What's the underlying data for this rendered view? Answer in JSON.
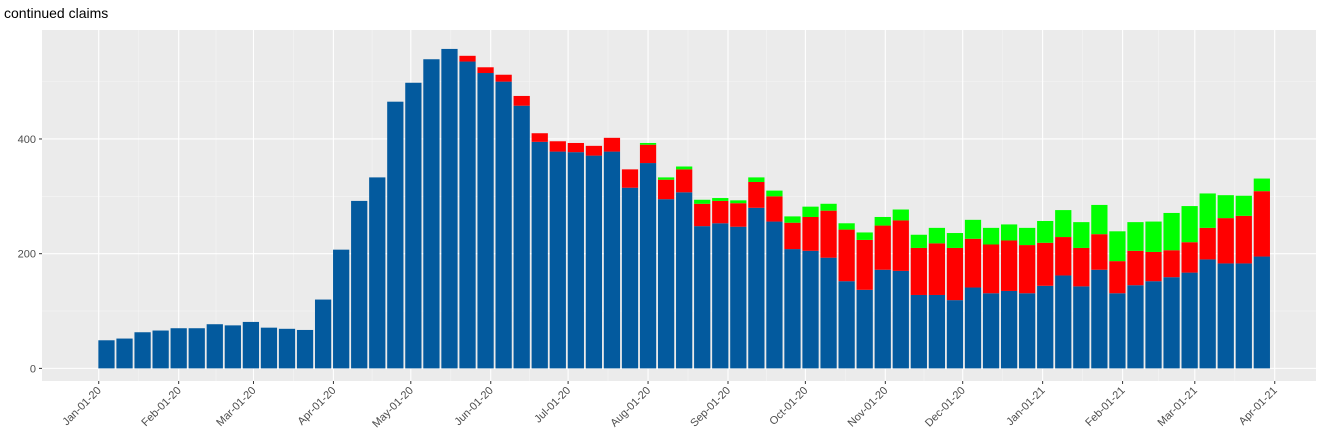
{
  "chart_data": {
    "type": "stacked_bar",
    "title": "continued claims",
    "x": [
      "2020-01-04",
      "2020-01-11",
      "2020-01-18",
      "2020-01-25",
      "2020-02-01",
      "2020-02-08",
      "2020-02-15",
      "2020-02-22",
      "2020-02-29",
      "2020-03-07",
      "2020-03-14",
      "2020-03-21",
      "2020-03-28",
      "2020-04-04",
      "2020-04-11",
      "2020-04-18",
      "2020-04-25",
      "2020-05-02",
      "2020-05-09",
      "2020-05-16",
      "2020-05-23",
      "2020-05-30",
      "2020-06-06",
      "2020-06-13",
      "2020-06-20",
      "2020-06-27",
      "2020-07-04",
      "2020-07-11",
      "2020-07-18",
      "2020-07-25",
      "2020-08-01",
      "2020-08-08",
      "2020-08-15",
      "2020-08-22",
      "2020-08-29",
      "2020-09-05",
      "2020-09-12",
      "2020-09-19",
      "2020-09-26",
      "2020-10-03",
      "2020-10-10",
      "2020-10-17",
      "2020-10-24",
      "2020-10-31",
      "2020-11-07",
      "2020-11-14",
      "2020-11-21",
      "2020-11-28",
      "2020-12-05",
      "2020-12-12",
      "2020-12-19",
      "2020-12-26",
      "2021-01-02",
      "2021-01-09",
      "2021-01-16",
      "2021-01-23",
      "2021-01-30",
      "2021-02-06",
      "2021-02-13",
      "2021-02-20",
      "2021-02-27",
      "2021-03-06",
      "2021-03-13",
      "2021-03-20",
      "2021-03-27"
    ],
    "series": [
      {
        "color": "#035a9e",
        "values": [
          49,
          52,
          63,
          66,
          70,
          70,
          77,
          75,
          81,
          71,
          69,
          67,
          120,
          207,
          292,
          333,
          465,
          498,
          539,
          557,
          535,
          515,
          500,
          458,
          395,
          378,
          377,
          371,
          378,
          315,
          358,
          295,
          307,
          248,
          253,
          247,
          280,
          256,
          208,
          205,
          193,
          152,
          137,
          172,
          170,
          128,
          128,
          119,
          141,
          131,
          135,
          131,
          144,
          162,
          143,
          172,
          131,
          145,
          152,
          159,
          167,
          190,
          183,
          183,
          195
        ]
      },
      {
        "color": "#ff0000",
        "values": [
          null,
          null,
          null,
          null,
          null,
          null,
          null,
          null,
          null,
          null,
          null,
          null,
          null,
          null,
          null,
          null,
          null,
          null,
          null,
          null,
          10,
          10,
          12,
          17,
          15,
          18,
          16,
          17,
          24,
          32,
          32,
          34,
          40,
          39,
          39,
          41,
          45,
          44,
          46,
          59,
          82,
          90,
          87,
          77,
          88,
          82,
          90,
          91,
          85,
          85,
          88,
          84,
          75,
          67,
          67,
          62,
          56,
          60,
          51,
          47,
          53,
          55,
          79,
          83,
          114
        ]
      },
      {
        "color": "#00ff00",
        "values": [
          null,
          null,
          null,
          null,
          null,
          null,
          null,
          null,
          null,
          null,
          null,
          null,
          null,
          null,
          null,
          null,
          null,
          null,
          null,
          null,
          null,
          null,
          null,
          null,
          null,
          null,
          null,
          null,
          null,
          null,
          3,
          4,
          5,
          7,
          5,
          5,
          8,
          10,
          11,
          18,
          12,
          11,
          13,
          15,
          19,
          23,
          27,
          26,
          33,
          29,
          28,
          30,
          38,
          47,
          45,
          51,
          52,
          50,
          53,
          65,
          63,
          60,
          40,
          35,
          22
        ]
      }
    ],
    "xlim": [
      "2019-12-10",
      "2021-04-17"
    ],
    "xticks": [
      {
        "value": "2020-01-01",
        "label": "Jan-01-20"
      },
      {
        "value": "2020-02-01",
        "label": "Feb-01-20"
      },
      {
        "value": "2020-03-01",
        "label": "Mar-01-20"
      },
      {
        "value": "2020-04-01",
        "label": "Apr-01-20"
      },
      {
        "value": "2020-05-01",
        "label": "May-01-20"
      },
      {
        "value": "2020-06-01",
        "label": "Jun-01-20"
      },
      {
        "value": "2020-07-01",
        "label": "Jul-01-20"
      },
      {
        "value": "2020-08-01",
        "label": "Aug-01-20"
      },
      {
        "value": "2020-09-01",
        "label": "Sep-01-20"
      },
      {
        "value": "2020-10-01",
        "label": "Oct-01-20"
      },
      {
        "value": "2020-11-01",
        "label": "Nov-01-20"
      },
      {
        "value": "2020-12-01",
        "label": "Dec-01-20"
      },
      {
        "value": "2021-01-01",
        "label": "Jan-01-21"
      },
      {
        "value": "2021-02-01",
        "label": "Feb-01-21"
      },
      {
        "value": "2021-03-01",
        "label": "Mar-01-21"
      },
      {
        "value": "2021-04-01",
        "label": "Apr-01-21"
      }
    ],
    "ylim": [
      -22,
      590
    ],
    "yticks": [
      0,
      200,
      400
    ],
    "grid": true
  }
}
